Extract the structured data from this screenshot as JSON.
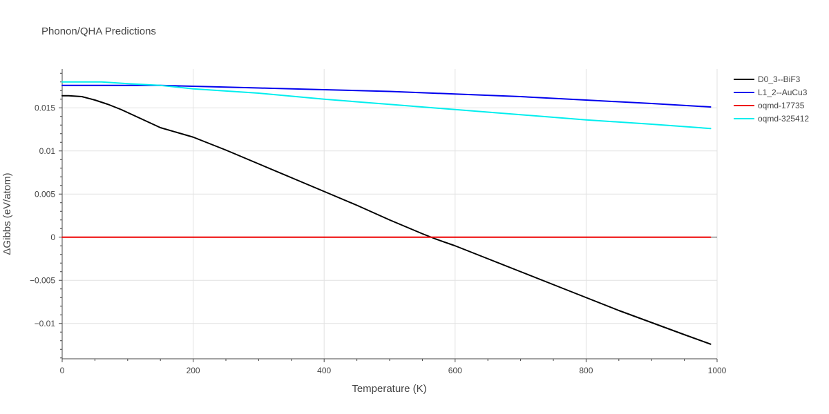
{
  "chart_data": {
    "type": "line",
    "title": "Phonon/QHA Predictions",
    "xlabel": "Temperature (K)",
    "ylabel": "ΔGibbs (eV/atom)",
    "xlim": [
      0,
      1000
    ],
    "ylim": [
      -0.0141,
      0.0195
    ],
    "grid": true,
    "legend_position": "top-right outside",
    "x_ticks": [
      {
        "value": 0,
        "label": "0"
      },
      {
        "value": 200,
        "label": "200"
      },
      {
        "value": 400,
        "label": "400"
      },
      {
        "value": 600,
        "label": "600"
      },
      {
        "value": 800,
        "label": "800"
      },
      {
        "value": 1000,
        "label": "1000"
      }
    ],
    "y_ticks": [
      {
        "value": -0.01,
        "label": "−0.01"
      },
      {
        "value": -0.005,
        "label": "−0.005"
      },
      {
        "value": 0,
        "label": "0"
      },
      {
        "value": 0.005,
        "label": "0.005"
      },
      {
        "value": 0.01,
        "label": "0.01"
      },
      {
        "value": 0.015,
        "label": "0.015"
      }
    ],
    "series": [
      {
        "name": "D0_3--BiF3",
        "color": "#000000",
        "x": [
          0,
          10,
          30,
          50,
          70,
          90,
          110,
          130,
          150,
          200,
          250,
          300,
          350,
          400,
          450,
          500,
          550,
          570,
          600,
          650,
          700,
          750,
          800,
          850,
          900,
          950,
          990
        ],
        "y": [
          0.0164,
          0.0164,
          0.0163,
          0.0159,
          0.0154,
          0.0148,
          0.0141,
          0.0134,
          0.0127,
          0.0116,
          0.0101,
          0.0085,
          0.0069,
          0.0053,
          0.0037,
          0.002,
          0.0004,
          -0.0002,
          -0.001,
          -0.0025,
          -0.004,
          -0.0055,
          -0.007,
          -0.0085,
          -0.0099,
          -0.0113,
          -0.0124
        ]
      },
      {
        "name": "L1_2--AuCu3",
        "color": "#0000ee",
        "x": [
          0,
          50,
          100,
          150,
          200,
          300,
          400,
          500,
          600,
          700,
          800,
          900,
          990
        ],
        "y": [
          0.0176,
          0.0176,
          0.0176,
          0.0176,
          0.0175,
          0.0173,
          0.0171,
          0.0169,
          0.0166,
          0.0163,
          0.0159,
          0.0155,
          0.0151
        ]
      },
      {
        "name": "oqmd-17735",
        "color": "#ee0000",
        "x": [
          0,
          990
        ],
        "y": [
          0.0,
          0.0
        ]
      },
      {
        "name": "oqmd-325412",
        "color": "#00eeee",
        "x": [
          0,
          30,
          60,
          80,
          100,
          150,
          200,
          300,
          400,
          500,
          600,
          700,
          800,
          900,
          990
        ],
        "y": [
          0.018,
          0.018,
          0.018,
          0.0179,
          0.0178,
          0.0176,
          0.0172,
          0.0167,
          0.016,
          0.0154,
          0.0148,
          0.0142,
          0.0136,
          0.0131,
          0.0126
        ]
      }
    ]
  }
}
